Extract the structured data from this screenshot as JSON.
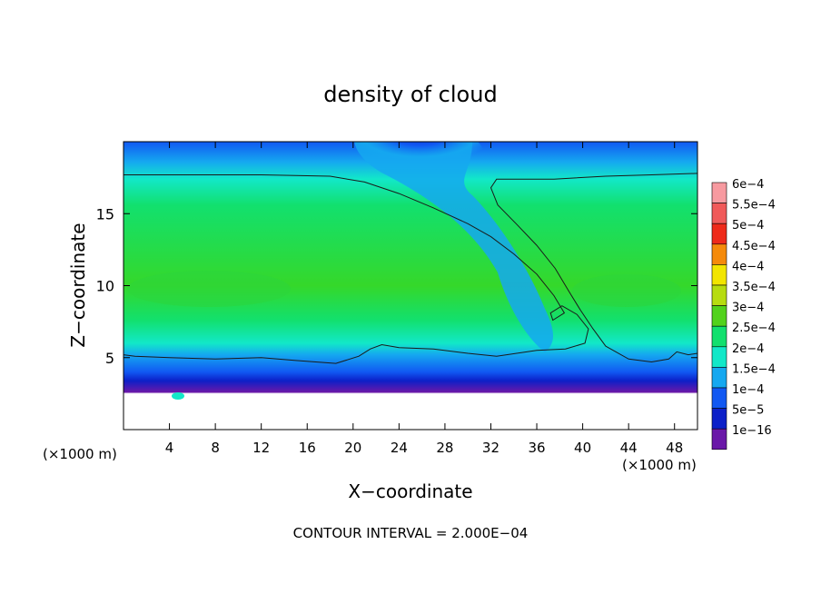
{
  "chart_data": {
    "type": "heatmap",
    "title": "density of cloud",
    "xlabel": "X−coordinate",
    "ylabel": "Z−coordinate",
    "x_unit": "(×1000 m)",
    "z_unit": "(×1000 m)",
    "xlim": [
      0,
      50
    ],
    "ylim": [
      0,
      20
    ],
    "x_ticks": [
      4,
      8,
      12,
      16,
      20,
      24,
      28,
      32,
      36,
      40,
      44,
      48
    ],
    "y_ticks": [
      5,
      10,
      15
    ],
    "footnote": "CONTOUR INTERVAL = 2.000E−04",
    "legend_position": "right",
    "colorbar": [
      {
        "label": "6e−4",
        "color": "#f79aa0"
      },
      {
        "label": "5.5e−4",
        "color": "#f05a5a"
      },
      {
        "label": "5e−4",
        "color": "#ee2a1a"
      },
      {
        "label": "4.5e−4",
        "color": "#f58a0a"
      },
      {
        "label": "4e−4",
        "color": "#f2e500"
      },
      {
        "label": "3.5e−4",
        "color": "#b7dc10"
      },
      {
        "label": "3e−4",
        "color": "#52d21c"
      },
      {
        "label": "2.5e−4",
        "color": "#12e06e"
      },
      {
        "label": "2e−4",
        "color": "#12e8c8"
      },
      {
        "label": "1.5e−4",
        "color": "#15a8f0"
      },
      {
        "label": "1e−4",
        "color": "#1158f2"
      },
      {
        "label": "5e−5",
        "color": "#0c20c8"
      },
      {
        "label": "1e−16",
        "color": "#6a18a8"
      }
    ],
    "contour_2e-4": {
      "left_boundary": [
        [
          0,
          17.7
        ],
        [
          12,
          17.7
        ],
        [
          18,
          17.6
        ],
        [
          21,
          17.2
        ],
        [
          24,
          16.4
        ],
        [
          27,
          15.4
        ],
        [
          30,
          14.3
        ],
        [
          32,
          13.4
        ],
        [
          34,
          12.2
        ],
        [
          36,
          10.8
        ],
        [
          37.5,
          9.3
        ],
        [
          38.4,
          8.1
        ],
        [
          37.4,
          7.6
        ],
        [
          37.2,
          8.1
        ],
        [
          38.2,
          8.6
        ],
        [
          39.5,
          8.0
        ],
        [
          40.5,
          7.0
        ],
        [
          40.2,
          6.0
        ],
        [
          38.5,
          5.6
        ],
        [
          36.0,
          5.5
        ],
        [
          32.5,
          5.1
        ],
        [
          30.0,
          5.3
        ],
        [
          27.0,
          5.6
        ],
        [
          24.0,
          5.7
        ],
        [
          22.5,
          5.9
        ],
        [
          21.5,
          5.6
        ],
        [
          20.5,
          5.1
        ],
        [
          18.5,
          4.6
        ],
        [
          15.0,
          4.8
        ],
        [
          12.0,
          5.0
        ],
        [
          8.0,
          4.9
        ],
        [
          4.0,
          5.0
        ],
        [
          1.0,
          5.1
        ],
        [
          0,
          5.2
        ]
      ],
      "right_boundary": [
        [
          50,
          17.8
        ],
        [
          46,
          17.7
        ],
        [
          42,
          17.6
        ],
        [
          37.5,
          17.4
        ],
        [
          32.5,
          17.4
        ],
        [
          32.0,
          16.8
        ],
        [
          32.6,
          15.6
        ],
        [
          34.2,
          14.3
        ],
        [
          36.0,
          12.8
        ],
        [
          37.6,
          11.2
        ],
        [
          38.8,
          9.6
        ],
        [
          39.8,
          8.3
        ],
        [
          40.9,
          7.0
        ],
        [
          42.0,
          5.8
        ],
        [
          44.0,
          4.9
        ],
        [
          46.0,
          4.7
        ],
        [
          47.5,
          4.9
        ],
        [
          48.2,
          5.4
        ],
        [
          49.2,
          5.2
        ],
        [
          50,
          5.3
        ]
      ]
    }
  }
}
